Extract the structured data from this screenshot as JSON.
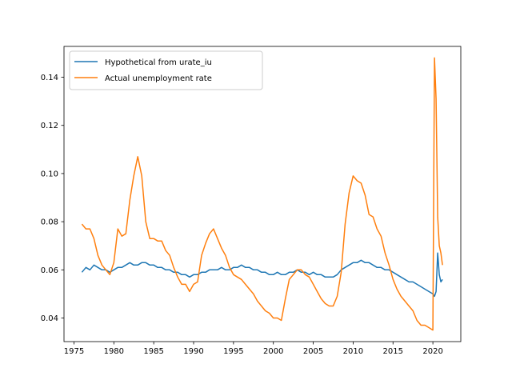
{
  "chart_data": {
    "type": "line",
    "title": "",
    "xlabel": "",
    "ylabel": "",
    "xlim": [
      1973.75,
      2023.5
    ],
    "ylim": [
      0.0302,
      0.1528
    ],
    "x_ticks": [
      "1975",
      "1980",
      "1985",
      "1990",
      "1995",
      "2000",
      "2005",
      "2010",
      "2015",
      "2020"
    ],
    "y_ticks": [
      "0.04",
      "0.06",
      "0.08",
      "0.10",
      "0.12",
      "0.14"
    ],
    "grid": false,
    "legend_position": "upper-left",
    "series": [
      {
        "name": "Hypothetical from urate_iu",
        "color": "#1f77b4",
        "x": [
          1976.0,
          1976.5,
          1977.0,
          1977.5,
          1978.0,
          1978.5,
          1979.0,
          1979.5,
          1980.0,
          1980.5,
          1981.0,
          1981.5,
          1982.0,
          1982.5,
          1983.0,
          1983.5,
          1984.0,
          1984.5,
          1985.0,
          1985.5,
          1986.0,
          1986.5,
          1987.0,
          1987.5,
          1988.0,
          1988.5,
          1989.0,
          1989.5,
          1990.0,
          1990.5,
          1991.0,
          1991.5,
          1992.0,
          1992.5,
          1993.0,
          1993.5,
          1994.0,
          1994.5,
          1995.0,
          1995.5,
          1996.0,
          1996.5,
          1997.0,
          1997.5,
          1998.0,
          1998.5,
          1999.0,
          1999.5,
          2000.0,
          2000.5,
          2001.0,
          2001.5,
          2002.0,
          2002.5,
          2003.0,
          2003.5,
          2004.0,
          2004.5,
          2005.0,
          2005.5,
          2006.0,
          2006.5,
          2007.0,
          2007.5,
          2008.0,
          2008.5,
          2009.0,
          2009.5,
          2010.0,
          2010.5,
          2011.0,
          2011.5,
          2012.0,
          2012.5,
          2013.0,
          2013.5,
          2014.0,
          2014.5,
          2015.0,
          2015.5,
          2016.0,
          2016.5,
          2017.0,
          2017.5,
          2018.0,
          2018.5,
          2019.0,
          2019.5,
          2020.0,
          2020.2,
          2020.4,
          2020.6,
          2020.8,
          2021.0,
          2021.2
        ],
        "y": [
          0.059,
          0.061,
          0.06,
          0.062,
          0.061,
          0.06,
          0.06,
          0.059,
          0.06,
          0.061,
          0.061,
          0.062,
          0.063,
          0.062,
          0.062,
          0.063,
          0.063,
          0.062,
          0.062,
          0.061,
          0.061,
          0.06,
          0.06,
          0.059,
          0.059,
          0.058,
          0.058,
          0.057,
          0.058,
          0.058,
          0.059,
          0.059,
          0.06,
          0.06,
          0.06,
          0.061,
          0.06,
          0.06,
          0.061,
          0.061,
          0.062,
          0.061,
          0.061,
          0.06,
          0.06,
          0.059,
          0.059,
          0.058,
          0.058,
          0.059,
          0.058,
          0.058,
          0.059,
          0.059,
          0.06,
          0.059,
          0.059,
          0.058,
          0.059,
          0.058,
          0.058,
          0.057,
          0.057,
          0.057,
          0.058,
          0.06,
          0.061,
          0.062,
          0.063,
          0.063,
          0.064,
          0.063,
          0.063,
          0.062,
          0.061,
          0.061,
          0.06,
          0.06,
          0.059,
          0.058,
          0.057,
          0.056,
          0.055,
          0.055,
          0.054,
          0.053,
          0.052,
          0.051,
          0.05,
          0.049,
          0.051,
          0.067,
          0.058,
          0.055,
          0.056
        ]
      },
      {
        "name": "Actual unemployment rate",
        "color": "#ff7f0e",
        "x": [
          1976.0,
          1976.5,
          1977.0,
          1977.5,
          1978.0,
          1978.5,
          1979.0,
          1979.5,
          1980.0,
          1980.5,
          1981.0,
          1981.5,
          1982.0,
          1982.5,
          1983.0,
          1983.5,
          1984.0,
          1984.5,
          1985.0,
          1985.5,
          1986.0,
          1986.5,
          1987.0,
          1987.5,
          1988.0,
          1988.5,
          1989.0,
          1989.5,
          1990.0,
          1990.5,
          1991.0,
          1991.5,
          1992.0,
          1992.5,
          1993.0,
          1993.5,
          1994.0,
          1994.5,
          1995.0,
          1995.5,
          1996.0,
          1996.5,
          1997.0,
          1997.5,
          1998.0,
          1998.5,
          1999.0,
          1999.5,
          2000.0,
          2000.5,
          2001.0,
          2001.5,
          2002.0,
          2002.5,
          2003.0,
          2003.5,
          2004.0,
          2004.5,
          2005.0,
          2005.5,
          2006.0,
          2006.5,
          2007.0,
          2007.5,
          2008.0,
          2008.5,
          2009.0,
          2009.5,
          2010.0,
          2010.5,
          2011.0,
          2011.5,
          2012.0,
          2012.5,
          2013.0,
          2013.5,
          2014.0,
          2014.5,
          2015.0,
          2015.5,
          2016.0,
          2016.5,
          2017.0,
          2017.5,
          2018.0,
          2018.5,
          2019.0,
          2019.5,
          2020.0,
          2020.2,
          2020.4,
          2020.6,
          2020.8,
          2021.0,
          2021.2
        ],
        "y": [
          0.079,
          0.077,
          0.077,
          0.073,
          0.066,
          0.062,
          0.06,
          0.058,
          0.063,
          0.077,
          0.074,
          0.075,
          0.089,
          0.099,
          0.107,
          0.099,
          0.08,
          0.073,
          0.073,
          0.072,
          0.072,
          0.068,
          0.066,
          0.061,
          0.057,
          0.054,
          0.054,
          0.051,
          0.054,
          0.055,
          0.066,
          0.071,
          0.075,
          0.077,
          0.073,
          0.069,
          0.066,
          0.061,
          0.058,
          0.057,
          0.056,
          0.054,
          0.052,
          0.05,
          0.047,
          0.045,
          0.043,
          0.042,
          0.04,
          0.04,
          0.039,
          0.048,
          0.056,
          0.058,
          0.06,
          0.06,
          0.058,
          0.057,
          0.054,
          0.051,
          0.048,
          0.046,
          0.045,
          0.045,
          0.049,
          0.059,
          0.079,
          0.092,
          0.099,
          0.097,
          0.096,
          0.091,
          0.083,
          0.082,
          0.077,
          0.074,
          0.067,
          0.062,
          0.056,
          0.052,
          0.049,
          0.047,
          0.045,
          0.043,
          0.039,
          0.037,
          0.037,
          0.036,
          0.035,
          0.148,
          0.131,
          0.082,
          0.07,
          0.067,
          0.062
        ]
      }
    ]
  }
}
